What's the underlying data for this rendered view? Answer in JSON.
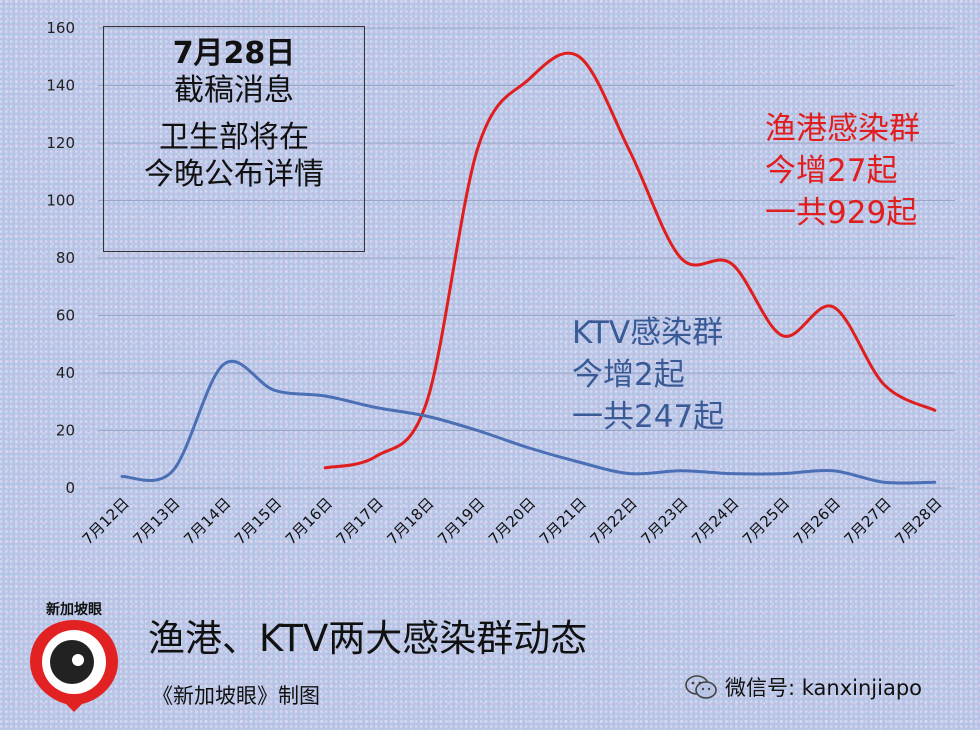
{
  "chart_data": {
    "type": "line",
    "ylim": [
      0,
      160
    ],
    "y_ticks": [
      "0",
      "20",
      "40",
      "60",
      "80",
      "100",
      "120",
      "140",
      "160"
    ],
    "categories": [
      "7月12日",
      "7月13日",
      "7月14日",
      "7月15日",
      "7月16日",
      "7月17日",
      "7月18日",
      "7月19日",
      "7月20日",
      "7月21日",
      "7月22日",
      "7月23日",
      "7月24日",
      "7月25日",
      "7月26日",
      "7月27日",
      "7月28日"
    ],
    "grid": true,
    "series": [
      {
        "color": "#e01e1e",
        "values": [
          null,
          null,
          null,
          null,
          7,
          11,
          30,
          118,
          142,
          150,
          117,
          80,
          78,
          53,
          63,
          36,
          27
        ]
      },
      {
        "color": "#4a6fb5",
        "values": [
          4,
          6,
          43,
          34,
          32,
          28,
          25,
          20,
          14,
          9,
          5,
          6,
          5,
          5,
          6,
          2,
          2
        ]
      }
    ]
  },
  "notice": {
    "line1": "7月28日",
    "line2": "截稿消息",
    "line3": "卫生部将在",
    "line4": "今晚公布详情"
  },
  "red_annotation": {
    "line1": "渔港感染群",
    "line2": "今增27起",
    "line3": "一共929起"
  },
  "blue_annotation": {
    "line1": "KTV感染群",
    "line2": "今增2起",
    "line3": "一共247起"
  },
  "logo_text": "新加坡眼",
  "title": "渔港、KTV两大感染群动态",
  "credit": "《新加坡眼》制图",
  "wechat": "微信号: kanxinjiapo"
}
